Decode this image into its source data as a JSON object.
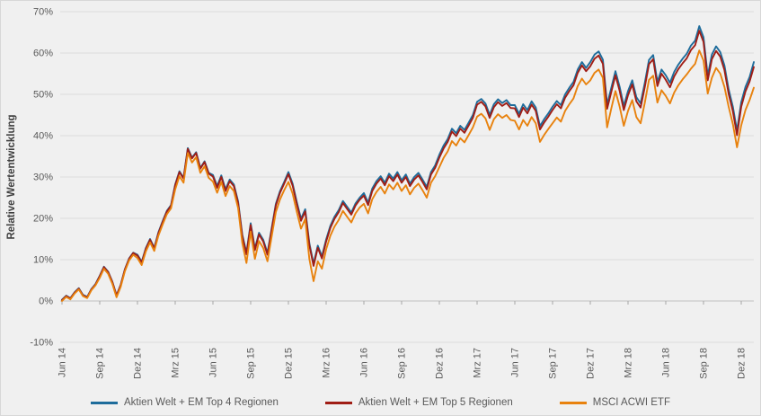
{
  "chart_data": {
    "type": "line",
    "title": "",
    "ylabel": "Relative Wertentwicklung",
    "xlabel": "",
    "ylim": [
      -10,
      70
    ],
    "y_tick_interval": 10,
    "y_tick_labels": [
      "70%",
      "60%",
      "50%",
      "40%",
      "30%",
      "20%",
      "10%",
      "0%",
      "-10%"
    ],
    "grid": "horizontal",
    "legend_position": "bottom",
    "x_unit": "months since Jun 2014",
    "x_start": 0,
    "x_step": 0.33333,
    "n_points": 166,
    "x_tick_positions": [
      0,
      3,
      6,
      9,
      12,
      15,
      18,
      21,
      24,
      27,
      30,
      33,
      36,
      39,
      42,
      45,
      48,
      51,
      54
    ],
    "x_tick_labels": [
      "Jun 14",
      "Sep 14",
      "Dez 14",
      "Mrz 15",
      "Jun 15",
      "Sep 15",
      "Dez 15",
      "Mrz 16",
      "Jun 16",
      "Sep 16",
      "Dez 16",
      "Mrz 17",
      "Jun 17",
      "Sep 17",
      "Dez 17",
      "Mrz 18",
      "Jun 18",
      "Sep 18",
      "Dez 18"
    ],
    "colors": {
      "background": "#F0F0F0",
      "gridline": "#DBDBDB",
      "zero_axis": "#BFBFBF",
      "tick_mark": "#A6A6A6",
      "tick_text": "#595959",
      "axis_title_text": "#3F3F3F"
    },
    "series": [
      {
        "name": "Aktien Welt + EM Top 4 Regionen",
        "color": "#1E6C9B",
        "values": [
          0.3,
          1.3,
          0.7,
          2.1,
          3.1,
          1.5,
          1.0,
          2.9,
          4.1,
          6.1,
          8.3,
          7.1,
          4.7,
          1.4,
          3.9,
          7.7,
          10.3,
          11.7,
          11.2,
          9.5,
          12.8,
          15.0,
          12.9,
          16.6,
          19.3,
          21.8,
          23.2,
          28.2,
          31.4,
          29.8,
          37.0,
          34.7,
          36.0,
          32.2,
          33.8,
          31.0,
          30.5,
          27.8,
          30.4,
          27.0,
          29.4,
          28.2,
          24.1,
          16.0,
          11.7,
          18.8,
          12.7,
          16.5,
          14.8,
          11.6,
          17.5,
          23.5,
          26.6,
          28.8,
          31.2,
          28.4,
          24.0,
          19.9,
          22.2,
          14.0,
          9.0,
          13.4,
          10.8,
          14.9,
          18.2,
          20.4,
          22.0,
          24.2,
          22.8,
          21.4,
          23.6,
          25.0,
          26.1,
          23.8,
          27.2,
          29.0,
          30.2,
          28.6,
          30.8,
          29.6,
          31.2,
          29.2,
          30.6,
          28.4,
          30.0,
          31.0,
          29.4,
          27.6,
          31.2,
          32.8,
          35.4,
          37.6,
          39.2,
          41.7,
          40.6,
          42.4,
          41.4,
          43.2,
          45.0,
          48.2,
          48.9,
          47.8,
          45.0,
          47.6,
          48.8,
          47.9,
          48.6,
          47.4,
          47.4,
          45.3,
          47.6,
          46.2,
          48.3,
          46.8,
          42.3,
          44.0,
          45.4,
          47.0,
          48.4,
          47.4,
          50.0,
          51.6,
          53.0,
          56.0,
          57.8,
          56.4,
          57.8,
          59.6,
          60.4,
          58.4,
          47.5,
          51.5,
          55.6,
          51.8,
          47.2,
          50.8,
          53.4,
          49.3,
          47.8,
          52.8,
          58.3,
          59.5,
          53.0,
          56.0,
          54.6,
          52.8,
          55.4,
          57.2,
          58.6,
          59.8,
          61.8,
          63.0,
          66.5,
          63.8,
          54.5,
          59.6,
          61.6,
          60.2,
          57.0,
          51.2,
          47.0,
          41.2,
          48.1,
          51.8,
          54.2,
          57.8
        ]
      },
      {
        "name": "Aktien Welt + EM Top 5 Regionen",
        "color": "#A01D15",
        "values": [
          0.2,
          1.2,
          0.6,
          2.0,
          3.0,
          1.4,
          0.9,
          2.8,
          4.0,
          6.0,
          8.2,
          7.0,
          4.6,
          1.3,
          3.8,
          7.6,
          10.2,
          11.6,
          11.0,
          9.3,
          12.6,
          14.8,
          12.7,
          16.4,
          19.1,
          21.6,
          23.0,
          28.0,
          31.2,
          29.6,
          36.8,
          34.5,
          35.8,
          32.0,
          33.6,
          30.8,
          30.1,
          27.4,
          30.0,
          26.6,
          29.0,
          27.8,
          23.7,
          15.6,
          11.3,
          18.4,
          12.3,
          16.1,
          14.4,
          11.2,
          17.1,
          23.1,
          26.2,
          28.4,
          30.7,
          27.9,
          23.5,
          19.4,
          21.7,
          13.5,
          8.5,
          12.9,
          10.3,
          14.4,
          17.7,
          19.9,
          21.5,
          23.7,
          22.3,
          20.9,
          23.1,
          24.5,
          25.5,
          23.2,
          26.6,
          28.4,
          29.6,
          28.0,
          30.2,
          29.0,
          30.6,
          28.6,
          30.0,
          27.8,
          29.4,
          30.4,
          28.8,
          27.0,
          30.6,
          32.2,
          34.7,
          36.9,
          38.5,
          41.0,
          39.9,
          41.7,
          40.7,
          42.5,
          44.3,
          47.5,
          48.2,
          47.1,
          44.3,
          46.9,
          48.1,
          47.2,
          47.9,
          46.7,
          46.6,
          44.5,
          46.8,
          45.4,
          47.5,
          46.0,
          41.5,
          43.2,
          44.6,
          46.2,
          47.6,
          46.6,
          49.2,
          50.8,
          52.2,
          55.2,
          57.0,
          55.6,
          56.8,
          58.6,
          59.4,
          57.4,
          46.5,
          50.5,
          54.6,
          50.8,
          46.2,
          49.8,
          52.4,
          48.3,
          46.8,
          51.8,
          57.3,
          58.5,
          52.0,
          55.0,
          53.5,
          51.7,
          54.3,
          56.1,
          57.5,
          58.7,
          60.7,
          61.9,
          65.4,
          62.7,
          53.4,
          58.5,
          60.5,
          59.1,
          55.9,
          50.1,
          45.9,
          40.1,
          47.0,
          50.7,
          53.1,
          56.6
        ]
      },
      {
        "name": "MSCI ACWI ETF",
        "color": "#E8820E",
        "values": [
          0.0,
          1.0,
          0.4,
          1.8,
          2.8,
          1.2,
          0.7,
          2.6,
          3.8,
          5.6,
          7.8,
          6.6,
          4.2,
          0.9,
          3.4,
          7.2,
          9.8,
          11.2,
          10.4,
          8.7,
          12.0,
          14.2,
          12.1,
          15.8,
          18.5,
          21.0,
          22.4,
          27.0,
          30.2,
          28.6,
          35.8,
          33.5,
          34.8,
          31.0,
          32.6,
          29.8,
          28.9,
          26.2,
          28.8,
          25.4,
          27.8,
          26.6,
          22.5,
          14.0,
          9.2,
          16.8,
          10.2,
          14.5,
          12.8,
          9.6,
          15.5,
          21.5,
          24.6,
          26.8,
          28.8,
          26.0,
          21.6,
          17.5,
          19.8,
          10.2,
          4.8,
          9.6,
          7.8,
          12.5,
          15.8,
          18.0,
          19.6,
          21.8,
          20.4,
          19.0,
          21.2,
          22.6,
          23.5,
          21.2,
          24.6,
          26.4,
          27.6,
          26.0,
          28.2,
          27.0,
          28.6,
          26.6,
          28.0,
          25.8,
          27.4,
          28.4,
          26.8,
          25.0,
          28.6,
          30.2,
          32.4,
          34.6,
          36.2,
          38.7,
          37.6,
          39.4,
          38.4,
          40.2,
          42.0,
          44.6,
          45.3,
          44.2,
          41.4,
          44.0,
          45.2,
          44.3,
          45.0,
          43.8,
          43.6,
          41.5,
          43.8,
          42.4,
          44.5,
          43.0,
          38.5,
          40.2,
          41.6,
          43.0,
          44.4,
          43.4,
          46.0,
          47.6,
          49.0,
          52.0,
          53.8,
          52.4,
          53.4,
          55.2,
          56.0,
          54.0,
          42.0,
          46.5,
          50.8,
          47.0,
          42.4,
          46.0,
          48.6,
          44.5,
          43.0,
          48.0,
          53.5,
          54.5,
          48.0,
          51.0,
          49.6,
          47.8,
          50.4,
          52.2,
          53.6,
          54.8,
          56.2,
          57.4,
          60.6,
          58.2,
          50.2,
          54.0,
          56.4,
          55.0,
          51.8,
          47.0,
          42.8,
          37.2,
          42.5,
          46.2,
          48.6,
          51.6
        ]
      }
    ]
  }
}
